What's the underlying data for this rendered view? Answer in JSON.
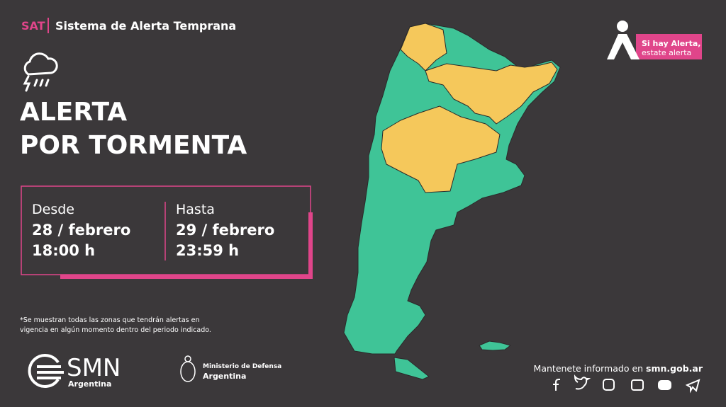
{
  "header": {
    "tag": "SAT",
    "title": "Sistema de Alerta Temprana"
  },
  "alert": {
    "line1": "ALERTA",
    "line2": "POR TORMENTA"
  },
  "period": {
    "from_label": "Desde",
    "from_date": "28 / febrero",
    "from_time": "18:00 h",
    "to_label": "Hasta",
    "to_date": "29 / febrero",
    "to_time": "23:59 h"
  },
  "footnote": "*Se muestran todas las zonas que tendrán alertas en vigencia en algún momento dentro del periodo indicado.",
  "badge": {
    "line1": "Si hay Alerta,",
    "line2": "estate alerta"
  },
  "logos": {
    "smn": "SMN",
    "smn_sub": "Argentina",
    "ministry": "Ministerio de Defensa",
    "ministry_sub": "Argentina"
  },
  "footer": {
    "text": "Mantenete informado en",
    "site": "smn.gob.ar"
  }
}
